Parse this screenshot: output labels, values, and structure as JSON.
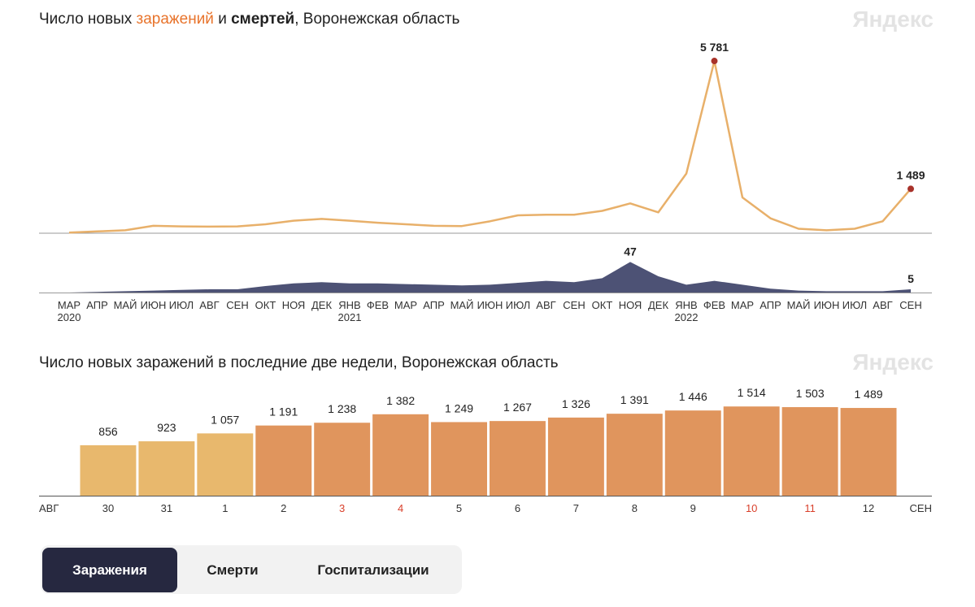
{
  "watermark": "Яндекс",
  "chart_data": [
    {
      "type": "line",
      "title_parts": [
        "Число новых ",
        "заражений",
        " и ",
        "смертей",
        ", Воронежская область"
      ],
      "categories": [
        "МАР 2020",
        "АПР",
        "МАЙ",
        "ИЮН",
        "ИЮЛ",
        "АВГ",
        "СЕН",
        "ОКТ",
        "НОЯ",
        "ДЕК",
        "ЯНВ 2021",
        "ФЕВ",
        "МАР",
        "АПР",
        "МАЙ",
        "ИЮН",
        "ИЮЛ",
        "АВГ",
        "СЕН",
        "ОКТ",
        "НОЯ",
        "ДЕК",
        "ЯНВ 2022",
        "ФЕВ",
        "МАР",
        "АПР",
        "МАЙ",
        "ИЮН",
        "ИЮЛ",
        "АВГ",
        "СЕН"
      ],
      "ylim": [
        0,
        6000
      ],
      "y2lim": [
        0,
        50
      ],
      "series": [
        {
          "color": "#e8b06a",
          "marker_color": "#a8322a",
          "values": [
            20,
            60,
            100,
            250,
            230,
            220,
            230,
            300,
            420,
            480,
            420,
            350,
            300,
            250,
            240,
            400,
            600,
            620,
            620,
            750,
            1000,
            700,
            2000,
            5781,
            1200,
            500,
            150,
            100,
            150,
            400,
            1489
          ],
          "value_labels": [
            null,
            null,
            null,
            null,
            null,
            null,
            null,
            null,
            null,
            null,
            null,
            null,
            null,
            null,
            null,
            null,
            null,
            null,
            null,
            null,
            null,
            null,
            null,
            "5 781",
            null,
            null,
            null,
            null,
            null,
            null,
            "1 489"
          ]
        },
        {
          "axis": "y2",
          "kind": "area",
          "color": "#4d5275",
          "values": [
            0,
            1,
            2,
            3,
            4,
            5,
            5,
            10,
            14,
            16,
            14,
            14,
            13,
            12,
            11,
            12,
            15,
            18,
            16,
            22,
            47,
            25,
            12,
            18,
            12,
            6,
            3,
            2,
            2,
            2,
            5
          ]
        }
      ]
    },
    {
      "type": "bar",
      "title": "Число новых заражений в последние две недели, Воронежская область",
      "month_start": "АВГ",
      "month_end": "СЕН",
      "categories": [
        "30",
        "31",
        "1",
        "2",
        "3",
        "4",
        "5",
        "6",
        "7",
        "8",
        "9",
        "10",
        "11",
        "12"
      ],
      "category_colors": [
        "#333333",
        "#333333",
        "#333333",
        "#333333",
        "#d9402b",
        "#d9402b",
        "#333333",
        "#333333",
        "#333333",
        "#333333",
        "#333333",
        "#d9402b",
        "#d9402b",
        "#333333"
      ],
      "values": [
        856,
        923,
        1057,
        1191,
        1238,
        1382,
        1249,
        1267,
        1326,
        1391,
        1446,
        1514,
        1503,
        1489
      ],
      "value_labels": [
        "856",
        "923",
        "1 057",
        "1 191",
        "1 238",
        "1 382",
        "1 249",
        "1 267",
        "1 326",
        "1 391",
        "1 446",
        "1 514",
        "1 503",
        "1 489"
      ],
      "colors": [
        "#e8b86d",
        "#e8b86d",
        "#e8b86d",
        "#e0955d",
        "#e0955d",
        "#e0955d",
        "#e0955d",
        "#e0955d",
        "#e0955d",
        "#e0955d",
        "#e0955d",
        "#e0955d",
        "#e0955d",
        "#e0955d"
      ],
      "ylim": [
        0,
        1600
      ]
    }
  ],
  "tabs": {
    "items": [
      "Заражения",
      "Смерти",
      "Госпитализации"
    ],
    "active": 0
  }
}
